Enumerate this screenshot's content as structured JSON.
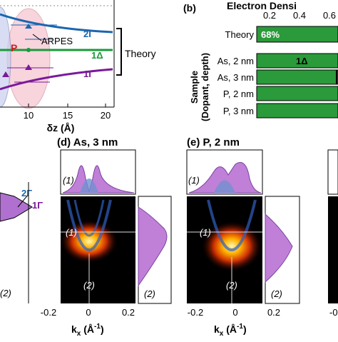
{
  "panel_a": {
    "curve_labels": [
      "2Γ",
      "1Δ",
      "1Γ"
    ],
    "region_labels": [
      "P"
    ],
    "annotation": "ARPES",
    "bracket_label": "Theory",
    "x_ticks": [
      "10",
      "15",
      "20"
    ],
    "x_label": "δz (Å)"
  },
  "panel_b": {
    "tag": "(b)",
    "title": "Electron Densi",
    "axis_ticks": [
      "0.2",
      "0.4",
      "0.6"
    ],
    "y_label": "Sample",
    "y_label_sub": "(Dopant, depth)",
    "rows": [
      "Theory",
      "As, 2 nm",
      "As, 3 nm",
      "P, 2 nm",
      "P, 3 nm"
    ],
    "bar_labels": [
      "68%",
      "1Δ"
    ]
  },
  "panel_c": {
    "curve_labels": [
      "2Γ",
      "1Γ"
    ],
    "cut_label": "(2)"
  },
  "panel_d": {
    "title": "(d) As, 3 nm",
    "cut_labels": [
      "(1)",
      "(2)"
    ],
    "x_ticks": [
      "-0.2",
      "0",
      "0.2"
    ],
    "x_label": "k",
    "x_label_sub": "x",
    "x_label_unit": "(Å",
    "x_label_exp": "-1",
    "x_label_close": ")"
  },
  "panel_e": {
    "title": "(e) P, 2 nm",
    "cut_labels": [
      "(1)",
      "(2)"
    ],
    "x_ticks": [
      "-0.2",
      "0",
      "0.2"
    ],
    "x_label": "k",
    "x_label_sub": "x",
    "x_label_unit": "(Å",
    "x_label_exp": "-1",
    "x_label_close": ")"
  },
  "panel_f": {
    "x_ticks": [
      "-0"
    ]
  }
}
